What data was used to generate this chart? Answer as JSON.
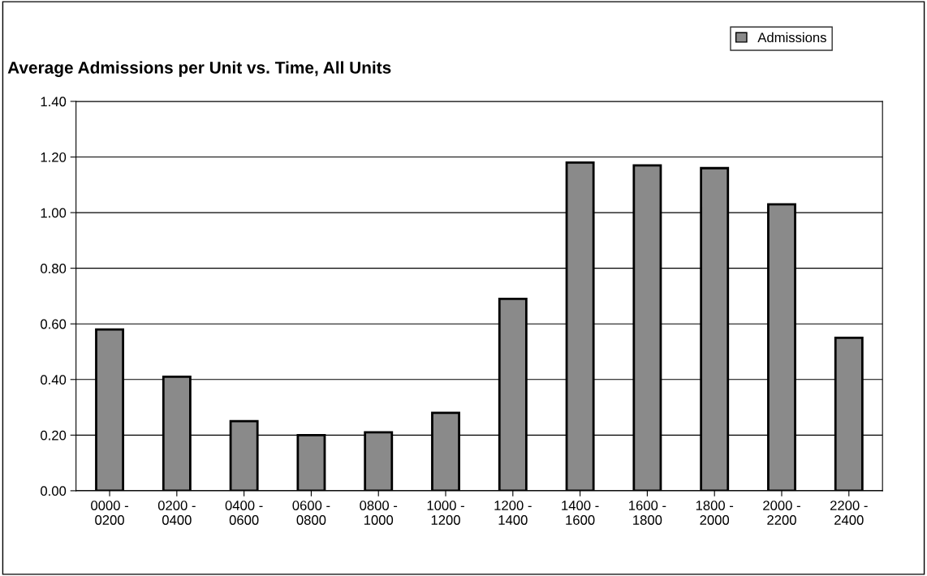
{
  "chart_data": {
    "type": "bar",
    "title": "Average Admissions per Unit vs. Time, All Units",
    "categories": [
      "0000 -\n0200",
      "0200 -\n0400",
      "0400 -\n0600",
      "0600 -\n0800",
      "0800 -\n1000",
      "1000 -\n1200",
      "1200 -\n1400",
      "1400 -\n1600",
      "1600 -\n1800",
      "1800 -\n2000",
      "2000 -\n2200",
      "2200 -\n2400"
    ],
    "series": [
      {
        "name": "Admissions",
        "color": "#8a8a8a",
        "values": [
          0.58,
          0.41,
          0.25,
          0.2,
          0.21,
          0.28,
          0.69,
          1.18,
          1.17,
          1.16,
          1.03,
          0.55
        ]
      }
    ],
    "ylim": [
      0,
      1.4
    ],
    "yticks": [
      {
        "value": 0,
        "label": "0.00"
      },
      {
        "value": 0.2,
        "label": "0.20"
      },
      {
        "value": 0.4,
        "label": "0.40"
      },
      {
        "value": 0.6,
        "label": "0.60"
      },
      {
        "value": 0.8,
        "label": "0.80"
      },
      {
        "value": 1.0,
        "label": "1.00"
      },
      {
        "value": 1.2,
        "label": "1.20"
      },
      {
        "value": 1.4,
        "label": "1.40"
      }
    ],
    "grid": "y",
    "legend": "top right"
  }
}
